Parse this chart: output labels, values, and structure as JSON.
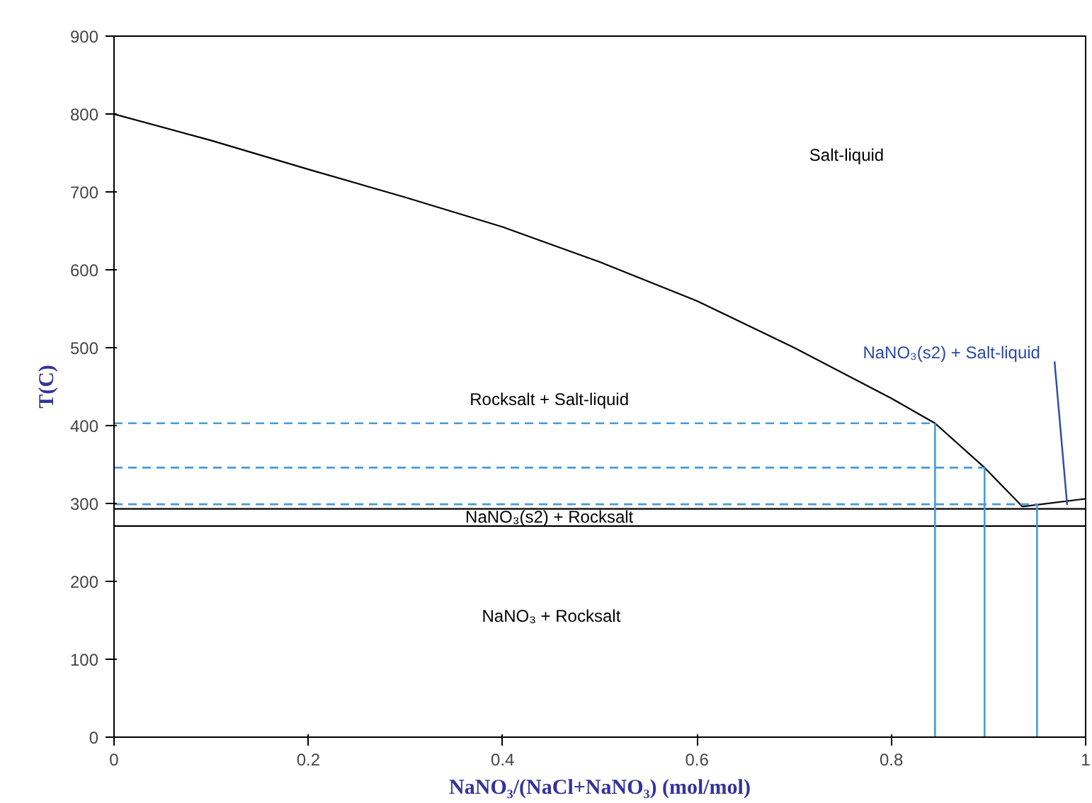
{
  "chart_data": {
    "type": "line",
    "xlabel": "NaNO₃/(NaCl+NaNO₃) (mol/mol)",
    "ylabel": "T(C)",
    "xlim": [
      0,
      1
    ],
    "ylim": [
      0,
      900
    ],
    "xticks": [
      0,
      0.2,
      0.4,
      0.6,
      0.8,
      1
    ],
    "yticks": [
      0,
      100,
      200,
      300,
      400,
      500,
      600,
      700,
      800,
      900
    ],
    "grid": false,
    "series": [
      {
        "color": "#000000",
        "line_style": "solid",
        "x": [
          0,
          0.1,
          0.2,
          0.3,
          0.4,
          0.5,
          0.6,
          0.7,
          0.8,
          0.845,
          0.896,
          0.935
        ],
        "values": [
          800,
          766,
          729,
          693,
          655,
          610,
          560,
          500,
          435,
          403,
          346,
          296
        ]
      },
      {
        "color": "#000000",
        "line_style": "solid",
        "x": [
          0.935,
          1
        ],
        "values": [
          296,
          306
        ]
      },
      {
        "color": "#000000",
        "line_style": "solid",
        "x": [
          0,
          1
        ],
        "values": [
          293,
          293
        ]
      },
      {
        "color": "#000000",
        "line_style": "solid",
        "x": [
          0,
          1
        ],
        "values": [
          271,
          271
        ]
      },
      {
        "color": "#4a9ad8",
        "line_style": "dashed",
        "x": [
          0,
          0.845
        ],
        "values": [
          403,
          403
        ]
      },
      {
        "color": "#4a9ad8",
        "line_style": "dashed",
        "x": [
          0,
          0.896
        ],
        "values": [
          346,
          346
        ]
      },
      {
        "color": "#4a9ad8",
        "line_style": "dashed",
        "x": [
          0,
          0.95
        ],
        "values": [
          299,
          299
        ]
      },
      {
        "color": "#4a9ad8",
        "line_style": "solid",
        "x": [
          0.845,
          0.845
        ],
        "values": [
          403,
          0
        ]
      },
      {
        "color": "#4a9ad8",
        "line_style": "solid",
        "x": [
          0.896,
          0.896
        ],
        "values": [
          346,
          0
        ]
      },
      {
        "color": "#4a9ad8",
        "line_style": "solid",
        "x": [
          0.95,
          0.95
        ],
        "values": [
          299,
          0
        ]
      }
    ],
    "annotations": [
      "Salt-liquid",
      "Rocksalt + Salt-liquid",
      "NaNO₃(s2) + Rocksalt",
      "NaNO₃ + Rocksalt",
      {
        "text": "NaNO₃(s2) + Salt-liquid",
        "x": 0.981,
        "y": 298
      }
    ]
  }
}
